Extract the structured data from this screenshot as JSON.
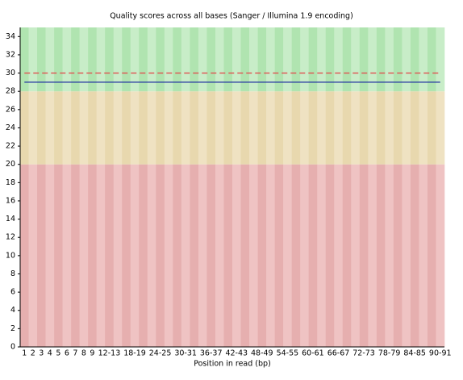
{
  "chart_data": {
    "type": "line",
    "title": "Quality scores across all bases (Sanger / Illumina 1.9 encoding)",
    "x_label": "Position in read (bp)",
    "categories": [
      "1",
      "2",
      "3",
      "4",
      "5",
      "6",
      "7",
      "8",
      "9",
      null,
      "12-13",
      null,
      null,
      "18-19",
      null,
      null,
      "24-25",
      null,
      null,
      "30-31",
      null,
      null,
      "36-37",
      null,
      null,
      "42-43",
      null,
      null,
      "48-49",
      null,
      null,
      "54-55",
      null,
      null,
      "60-61",
      null,
      null,
      "66-67",
      null,
      null,
      "72-73",
      null,
      null,
      "78-79",
      null,
      null,
      "84-85",
      null,
      null,
      "90-91"
    ],
    "series": [
      {
        "color": "#e05050",
        "dashed": true,
        "values": [
          30,
          30,
          30,
          30,
          30,
          30,
          30,
          30,
          30,
          30,
          30,
          30,
          30,
          30,
          30,
          30,
          30,
          30,
          30,
          30,
          30,
          30,
          30,
          30,
          30,
          30,
          30,
          30,
          30,
          30,
          30,
          30,
          30,
          30,
          30,
          30,
          30,
          30,
          30,
          30,
          30,
          30,
          30,
          30,
          30,
          30,
          30,
          30,
          30,
          30
        ]
      },
      {
        "color": "#2030a0",
        "dashed": false,
        "values": [
          29,
          29,
          29,
          29,
          29,
          29,
          29,
          29,
          29,
          29,
          29,
          29,
          29,
          29,
          29,
          29,
          29,
          29,
          29,
          29,
          29,
          29,
          29,
          29,
          29,
          29,
          29,
          29,
          29,
          29,
          29,
          29,
          29,
          29,
          29,
          29,
          29,
          29,
          29,
          29,
          29,
          29,
          29,
          29,
          29,
          29,
          29,
          29,
          29,
          29
        ]
      }
    ],
    "bands": [
      {
        "from": 0,
        "to": 20,
        "colors": [
          "#e6afaf",
          "#efc3c3"
        ]
      },
      {
        "from": 20,
        "to": 28,
        "colors": [
          "#e8d8ae",
          "#efe2c2"
        ]
      },
      {
        "from": 28,
        "to": 35,
        "colors": [
          "#b0e4b0",
          "#c8edc8"
        ]
      }
    ],
    "ylim": [
      0,
      35
    ],
    "yticks": [
      0,
      2,
      4,
      6,
      8,
      10,
      12,
      14,
      16,
      18,
      20,
      22,
      24,
      26,
      28,
      30,
      32,
      34
    ]
  }
}
